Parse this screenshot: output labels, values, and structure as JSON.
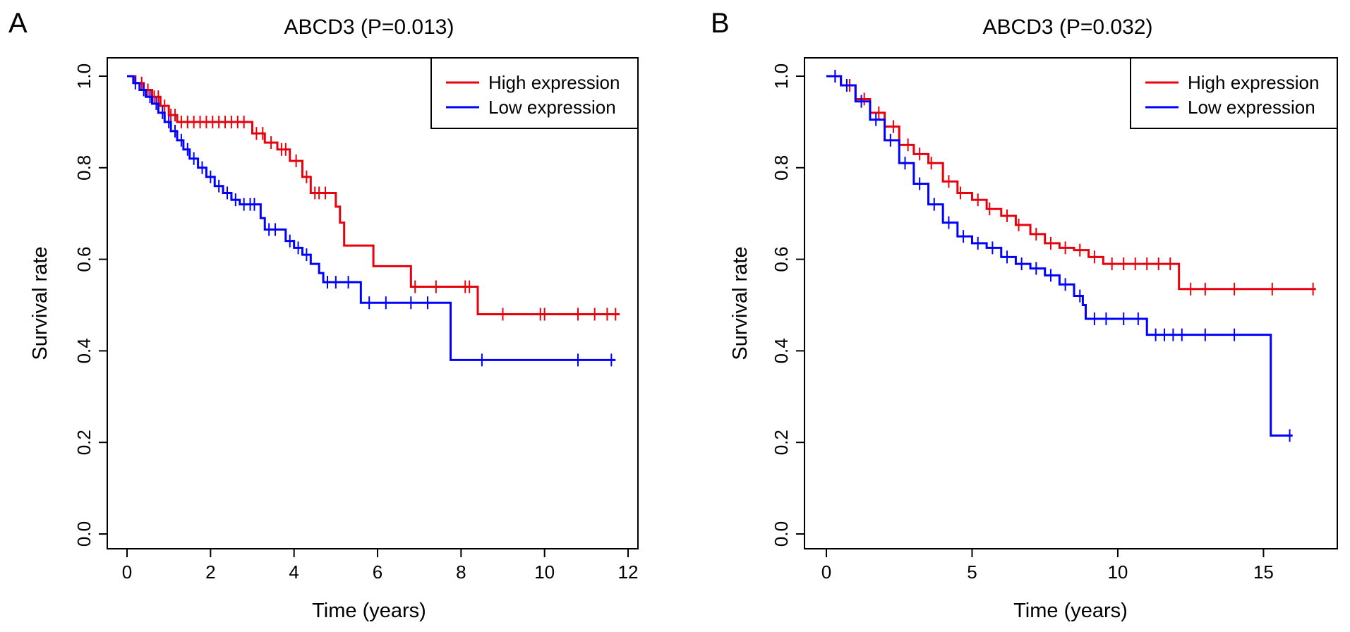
{
  "colors": {
    "high": "#e8000b",
    "low": "#0000ff"
  },
  "chart_data": [
    {
      "type": "line",
      "panel_label": "A",
      "title": "ABCD3 (P=0.013)",
      "xlabel": "Time (years)",
      "ylabel": "Survival rate",
      "xlim": [
        0,
        12
      ],
      "ylim": [
        0,
        1
      ],
      "xticks": [
        "0",
        "2",
        "4",
        "6",
        "8",
        "10",
        "12"
      ],
      "yticks": [
        "0.0",
        "0.2",
        "0.4",
        "0.6",
        "0.8",
        "1.0"
      ],
      "legend": {
        "position": "top-right",
        "entries": [
          "High expression",
          "Low expression"
        ]
      },
      "series": [
        {
          "name": "High expression",
          "color_key": "high",
          "steps": [
            [
              0,
              1.0
            ],
            [
              0.2,
              0.985
            ],
            [
              0.4,
              0.97
            ],
            [
              0.6,
              0.955
            ],
            [
              0.8,
              0.935
            ],
            [
              1.0,
              0.915
            ],
            [
              1.2,
              0.9
            ],
            [
              2.9,
              0.9
            ],
            [
              3.0,
              0.875
            ],
            [
              3.3,
              0.855
            ],
            [
              3.6,
              0.84
            ],
            [
              3.9,
              0.815
            ],
            [
              4.2,
              0.78
            ],
            [
              4.4,
              0.745
            ],
            [
              4.9,
              0.745
            ],
            [
              5.0,
              0.715
            ],
            [
              5.1,
              0.68
            ],
            [
              5.2,
              0.63
            ],
            [
              5.8,
              0.63
            ],
            [
              5.9,
              0.585
            ],
            [
              6.7,
              0.585
            ],
            [
              6.8,
              0.54
            ],
            [
              8.3,
              0.54
            ],
            [
              8.4,
              0.48
            ],
            [
              11.8,
              0.48
            ]
          ],
          "censors": [
            0.35,
            0.5,
            0.65,
            0.75,
            0.9,
            1.05,
            1.15,
            1.3,
            1.45,
            1.6,
            1.75,
            1.9,
            2.05,
            2.2,
            2.35,
            2.5,
            2.65,
            2.8,
            3.1,
            3.25,
            3.45,
            3.7,
            3.8,
            4.05,
            4.3,
            4.5,
            4.6,
            4.75,
            6.9,
            7.4,
            8.1,
            8.2,
            9.0,
            9.9,
            10.0,
            10.8,
            11.2,
            11.5,
            11.7
          ]
        },
        {
          "name": "Low expression",
          "color_key": "low",
          "steps": [
            [
              0,
              1.0
            ],
            [
              0.15,
              0.985
            ],
            [
              0.3,
              0.97
            ],
            [
              0.45,
              0.955
            ],
            [
              0.6,
              0.94
            ],
            [
              0.75,
              0.92
            ],
            [
              0.9,
              0.9
            ],
            [
              1.05,
              0.88
            ],
            [
              1.2,
              0.86
            ],
            [
              1.35,
              0.84
            ],
            [
              1.5,
              0.82
            ],
            [
              1.7,
              0.8
            ],
            [
              1.9,
              0.78
            ],
            [
              2.1,
              0.76
            ],
            [
              2.3,
              0.745
            ],
            [
              2.5,
              0.73
            ],
            [
              2.7,
              0.72
            ],
            [
              3.1,
              0.72
            ],
            [
              3.2,
              0.69
            ],
            [
              3.3,
              0.665
            ],
            [
              3.7,
              0.665
            ],
            [
              3.8,
              0.64
            ],
            [
              4.0,
              0.625
            ],
            [
              4.2,
              0.61
            ],
            [
              4.4,
              0.59
            ],
            [
              4.6,
              0.57
            ],
            [
              4.7,
              0.55
            ],
            [
              5.5,
              0.55
            ],
            [
              5.6,
              0.505
            ],
            [
              7.7,
              0.505
            ],
            [
              7.75,
              0.38
            ],
            [
              11.7,
              0.38
            ]
          ],
          "censors": [
            0.2,
            0.4,
            0.55,
            0.7,
            0.85,
            1.0,
            1.15,
            1.3,
            1.45,
            1.6,
            1.8,
            2.0,
            2.2,
            2.4,
            2.6,
            2.8,
            2.95,
            3.05,
            3.4,
            3.55,
            3.9,
            4.1,
            4.3,
            4.8,
            5.0,
            5.3,
            5.8,
            6.2,
            6.8,
            7.2,
            8.5,
            10.8,
            11.6
          ]
        }
      ]
    },
    {
      "type": "line",
      "panel_label": "B",
      "title": "ABCD3 (P=0.032)",
      "xlabel": "Time (years)",
      "ylabel": "Survival rate",
      "xlim": [
        0,
        17
      ],
      "ylim": [
        0,
        1
      ],
      "xticks": [
        "0",
        "5",
        "10",
        "15"
      ],
      "yticks": [
        "0.0",
        "0.2",
        "0.4",
        "0.6",
        "0.8",
        "1.0"
      ],
      "legend": {
        "position": "top-right",
        "entries": [
          "High expression",
          "Low expression"
        ]
      },
      "series": [
        {
          "name": "High expression",
          "color_key": "high",
          "steps": [
            [
              0,
              1.0
            ],
            [
              0.5,
              0.98
            ],
            [
              1.0,
              0.95
            ],
            [
              1.5,
              0.92
            ],
            [
              2.0,
              0.89
            ],
            [
              2.5,
              0.85
            ],
            [
              3.0,
              0.83
            ],
            [
              3.5,
              0.81
            ],
            [
              4.0,
              0.77
            ],
            [
              4.5,
              0.745
            ],
            [
              5.0,
              0.73
            ],
            [
              5.5,
              0.71
            ],
            [
              6.0,
              0.695
            ],
            [
              6.5,
              0.675
            ],
            [
              7.0,
              0.655
            ],
            [
              7.5,
              0.635
            ],
            [
              8.0,
              0.625
            ],
            [
              8.5,
              0.62
            ],
            [
              9.0,
              0.605
            ],
            [
              9.5,
              0.59
            ],
            [
              12.0,
              0.59
            ],
            [
              12.1,
              0.535
            ],
            [
              16.8,
              0.535
            ]
          ],
          "censors": [
            0.3,
            0.8,
            1.3,
            1.8,
            2.3,
            2.8,
            3.2,
            3.6,
            4.2,
            4.6,
            5.2,
            5.6,
            6.2,
            6.6,
            7.2,
            7.7,
            8.2,
            8.7,
            9.2,
            9.8,
            10.2,
            10.6,
            11.0,
            11.4,
            11.8,
            12.5,
            13.0,
            14.0,
            15.3,
            16.7
          ]
        },
        {
          "name": "Low expression",
          "color_key": "low",
          "steps": [
            [
              0,
              1.0
            ],
            [
              0.5,
              0.98
            ],
            [
              1.0,
              0.945
            ],
            [
              1.5,
              0.905
            ],
            [
              2.0,
              0.86
            ],
            [
              2.5,
              0.81
            ],
            [
              3.0,
              0.765
            ],
            [
              3.5,
              0.72
            ],
            [
              4.0,
              0.68
            ],
            [
              4.5,
              0.65
            ],
            [
              5.0,
              0.635
            ],
            [
              5.5,
              0.625
            ],
            [
              6.0,
              0.605
            ],
            [
              6.5,
              0.59
            ],
            [
              7.0,
              0.58
            ],
            [
              7.5,
              0.565
            ],
            [
              8.0,
              0.545
            ],
            [
              8.5,
              0.52
            ],
            [
              8.8,
              0.5
            ],
            [
              8.9,
              0.47
            ],
            [
              10.9,
              0.47
            ],
            [
              11.0,
              0.435
            ],
            [
              15.2,
              0.435
            ],
            [
              15.25,
              0.215
            ],
            [
              16.0,
              0.215
            ]
          ],
          "censors": [
            0.3,
            0.7,
            1.2,
            1.7,
            2.2,
            2.7,
            3.2,
            3.7,
            4.2,
            4.7,
            5.2,
            5.7,
            6.2,
            6.7,
            7.2,
            7.7,
            8.2,
            8.7,
            9.2,
            9.6,
            10.2,
            10.7,
            11.3,
            11.6,
            11.9,
            12.2,
            13.0,
            14.0,
            15.9
          ]
        }
      ]
    }
  ]
}
